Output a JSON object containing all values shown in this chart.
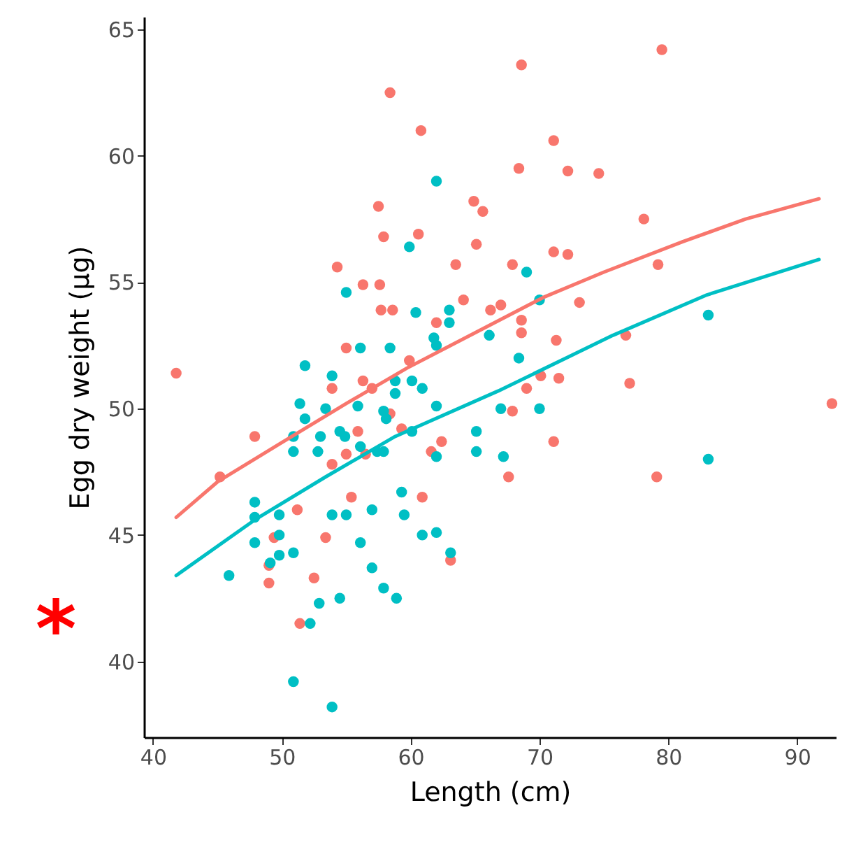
{
  "chart_data": {
    "type": "scatter",
    "xlabel": "Length (cm)",
    "ylabel": "Egg dry weight (µg)",
    "xlim": [
      39.3,
      93
    ],
    "ylim": [
      37,
      65.5
    ],
    "xticks": [
      40,
      50,
      60,
      70,
      80,
      90
    ],
    "yticks": [
      40,
      45,
      50,
      55,
      60,
      65
    ],
    "grid": false,
    "annotations": [
      "*"
    ],
    "series": [
      {
        "marker": "circle",
        "color": "#f8766d",
        "x": [
          41.8,
          45.2,
          47.9,
          51.2,
          49.4,
          49.0,
          49.0,
          53.4,
          52.5,
          51.4,
          55.4,
          53.9,
          55.9,
          55.0,
          56.5,
          53.9,
          56.3,
          57.0,
          58.4,
          59.3,
          58.4,
          57.5,
          57.9,
          54.3,
          56.3,
          57.6,
          57.7,
          58.6,
          55.0,
          60.8,
          68.6,
          79.5,
          71.1,
          68.4,
          72.2,
          74.6,
          64.9,
          65.6,
          60.6,
          65.1,
          63.5,
          67.9,
          71.1,
          72.2,
          78.1,
          79.2,
          64.1,
          62.0,
          66.2,
          67.0,
          68.6,
          68.6,
          73.1,
          71.3,
          76.7,
          59.9,
          70.1,
          71.5,
          77.0,
          69.0,
          67.9,
          92.7,
          62.4,
          61.6,
          71.1,
          67.6,
          79.1,
          60.9,
          63.1
        ],
        "values": [
          51.4,
          47.3,
          48.9,
          46.0,
          44.9,
          43.8,
          43.1,
          44.9,
          43.3,
          41.5,
          46.5,
          47.8,
          49.1,
          48.2,
          48.2,
          50.8,
          51.1,
          50.8,
          49.8,
          49.2,
          62.5,
          58.0,
          56.8,
          55.6,
          54.9,
          54.9,
          53.9,
          53.9,
          52.4,
          61.0,
          63.6,
          64.2,
          60.6,
          59.5,
          59.4,
          59.3,
          58.2,
          57.8,
          56.9,
          56.5,
          55.7,
          55.7,
          56.2,
          56.1,
          57.5,
          55.7,
          54.3,
          53.4,
          53.9,
          54.1,
          53.5,
          53.0,
          54.2,
          52.7,
          52.9,
          51.9,
          51.3,
          51.2,
          51.0,
          50.8,
          49.9,
          50.2,
          48.7,
          48.3,
          48.7,
          47.3,
          47.3,
          46.5,
          44.0
        ]
      },
      {
        "marker": "circle",
        "color": "#00bfc4",
        "x": [
          51.8,
          53.9,
          51.4,
          53.4,
          51.8,
          55.9,
          57.9,
          58.1,
          50.9,
          50.9,
          53.0,
          52.8,
          54.5,
          54.9,
          56.1,
          57.4,
          57.9,
          58.8,
          60.1,
          58.8,
          60.1,
          47.9,
          47.9,
          47.9,
          49.8,
          49.8,
          49.1,
          49.8,
          50.9,
          45.9,
          53.9,
          55.0,
          57.0,
          59.3,
          59.5,
          56.1,
          57.0,
          57.9,
          58.9,
          54.5,
          52.9,
          52.2,
          50.9,
          53.9,
          55.0,
          56.1,
          58.4,
          59.9,
          60.4,
          62.0,
          69.0,
          70.0,
          63.0,
          63.0,
          61.8,
          62.0,
          66.1,
          68.4,
          83.1,
          60.9,
          62.0,
          67.0,
          70.0,
          65.1,
          65.1,
          67.2,
          62.0,
          83.1,
          60.9,
          62.0,
          63.1
        ],
        "values": [
          51.7,
          51.3,
          50.2,
          50.0,
          49.6,
          50.1,
          49.9,
          49.6,
          48.9,
          48.3,
          48.9,
          48.3,
          49.1,
          48.9,
          48.5,
          48.3,
          48.3,
          51.1,
          51.1,
          50.6,
          49.1,
          46.3,
          45.7,
          44.7,
          45.8,
          45.0,
          43.9,
          44.2,
          44.3,
          43.4,
          45.8,
          45.8,
          46.0,
          46.7,
          45.8,
          44.7,
          43.7,
          42.9,
          42.5,
          42.5,
          42.3,
          41.5,
          39.2,
          38.2,
          54.6,
          52.4,
          52.4,
          56.4,
          53.8,
          59.0,
          55.4,
          54.3,
          53.9,
          53.4,
          52.8,
          52.5,
          52.9,
          52.0,
          53.7,
          50.8,
          50.1,
          50.0,
          50.0,
          49.1,
          48.3,
          48.1,
          48.1,
          48.0,
          45.0,
          45.1,
          44.3
        ]
      },
      {
        "type": "line",
        "marker": "none",
        "line_style": "solid",
        "color": "#f8766d",
        "x": [
          41.8,
          45,
          49.8,
          55,
          59.7,
          65,
          70.3,
          75,
          81.1,
          86,
          91.7
        ],
        "values": [
          45.7,
          47.1,
          48.6,
          50.2,
          51.6,
          53.0,
          54.4,
          55.4,
          56.6,
          57.5,
          58.3
        ]
      },
      {
        "type": "line",
        "marker": "none",
        "line_style": "solid",
        "color": "#00bfc4",
        "x": [
          41.8,
          47.9,
          53.4,
          58.8,
          66.8,
          75.7,
          83.0,
          91.7
        ],
        "values": [
          43.4,
          45.6,
          47.3,
          48.9,
          50.7,
          52.9,
          54.5,
          55.9
        ]
      }
    ]
  }
}
